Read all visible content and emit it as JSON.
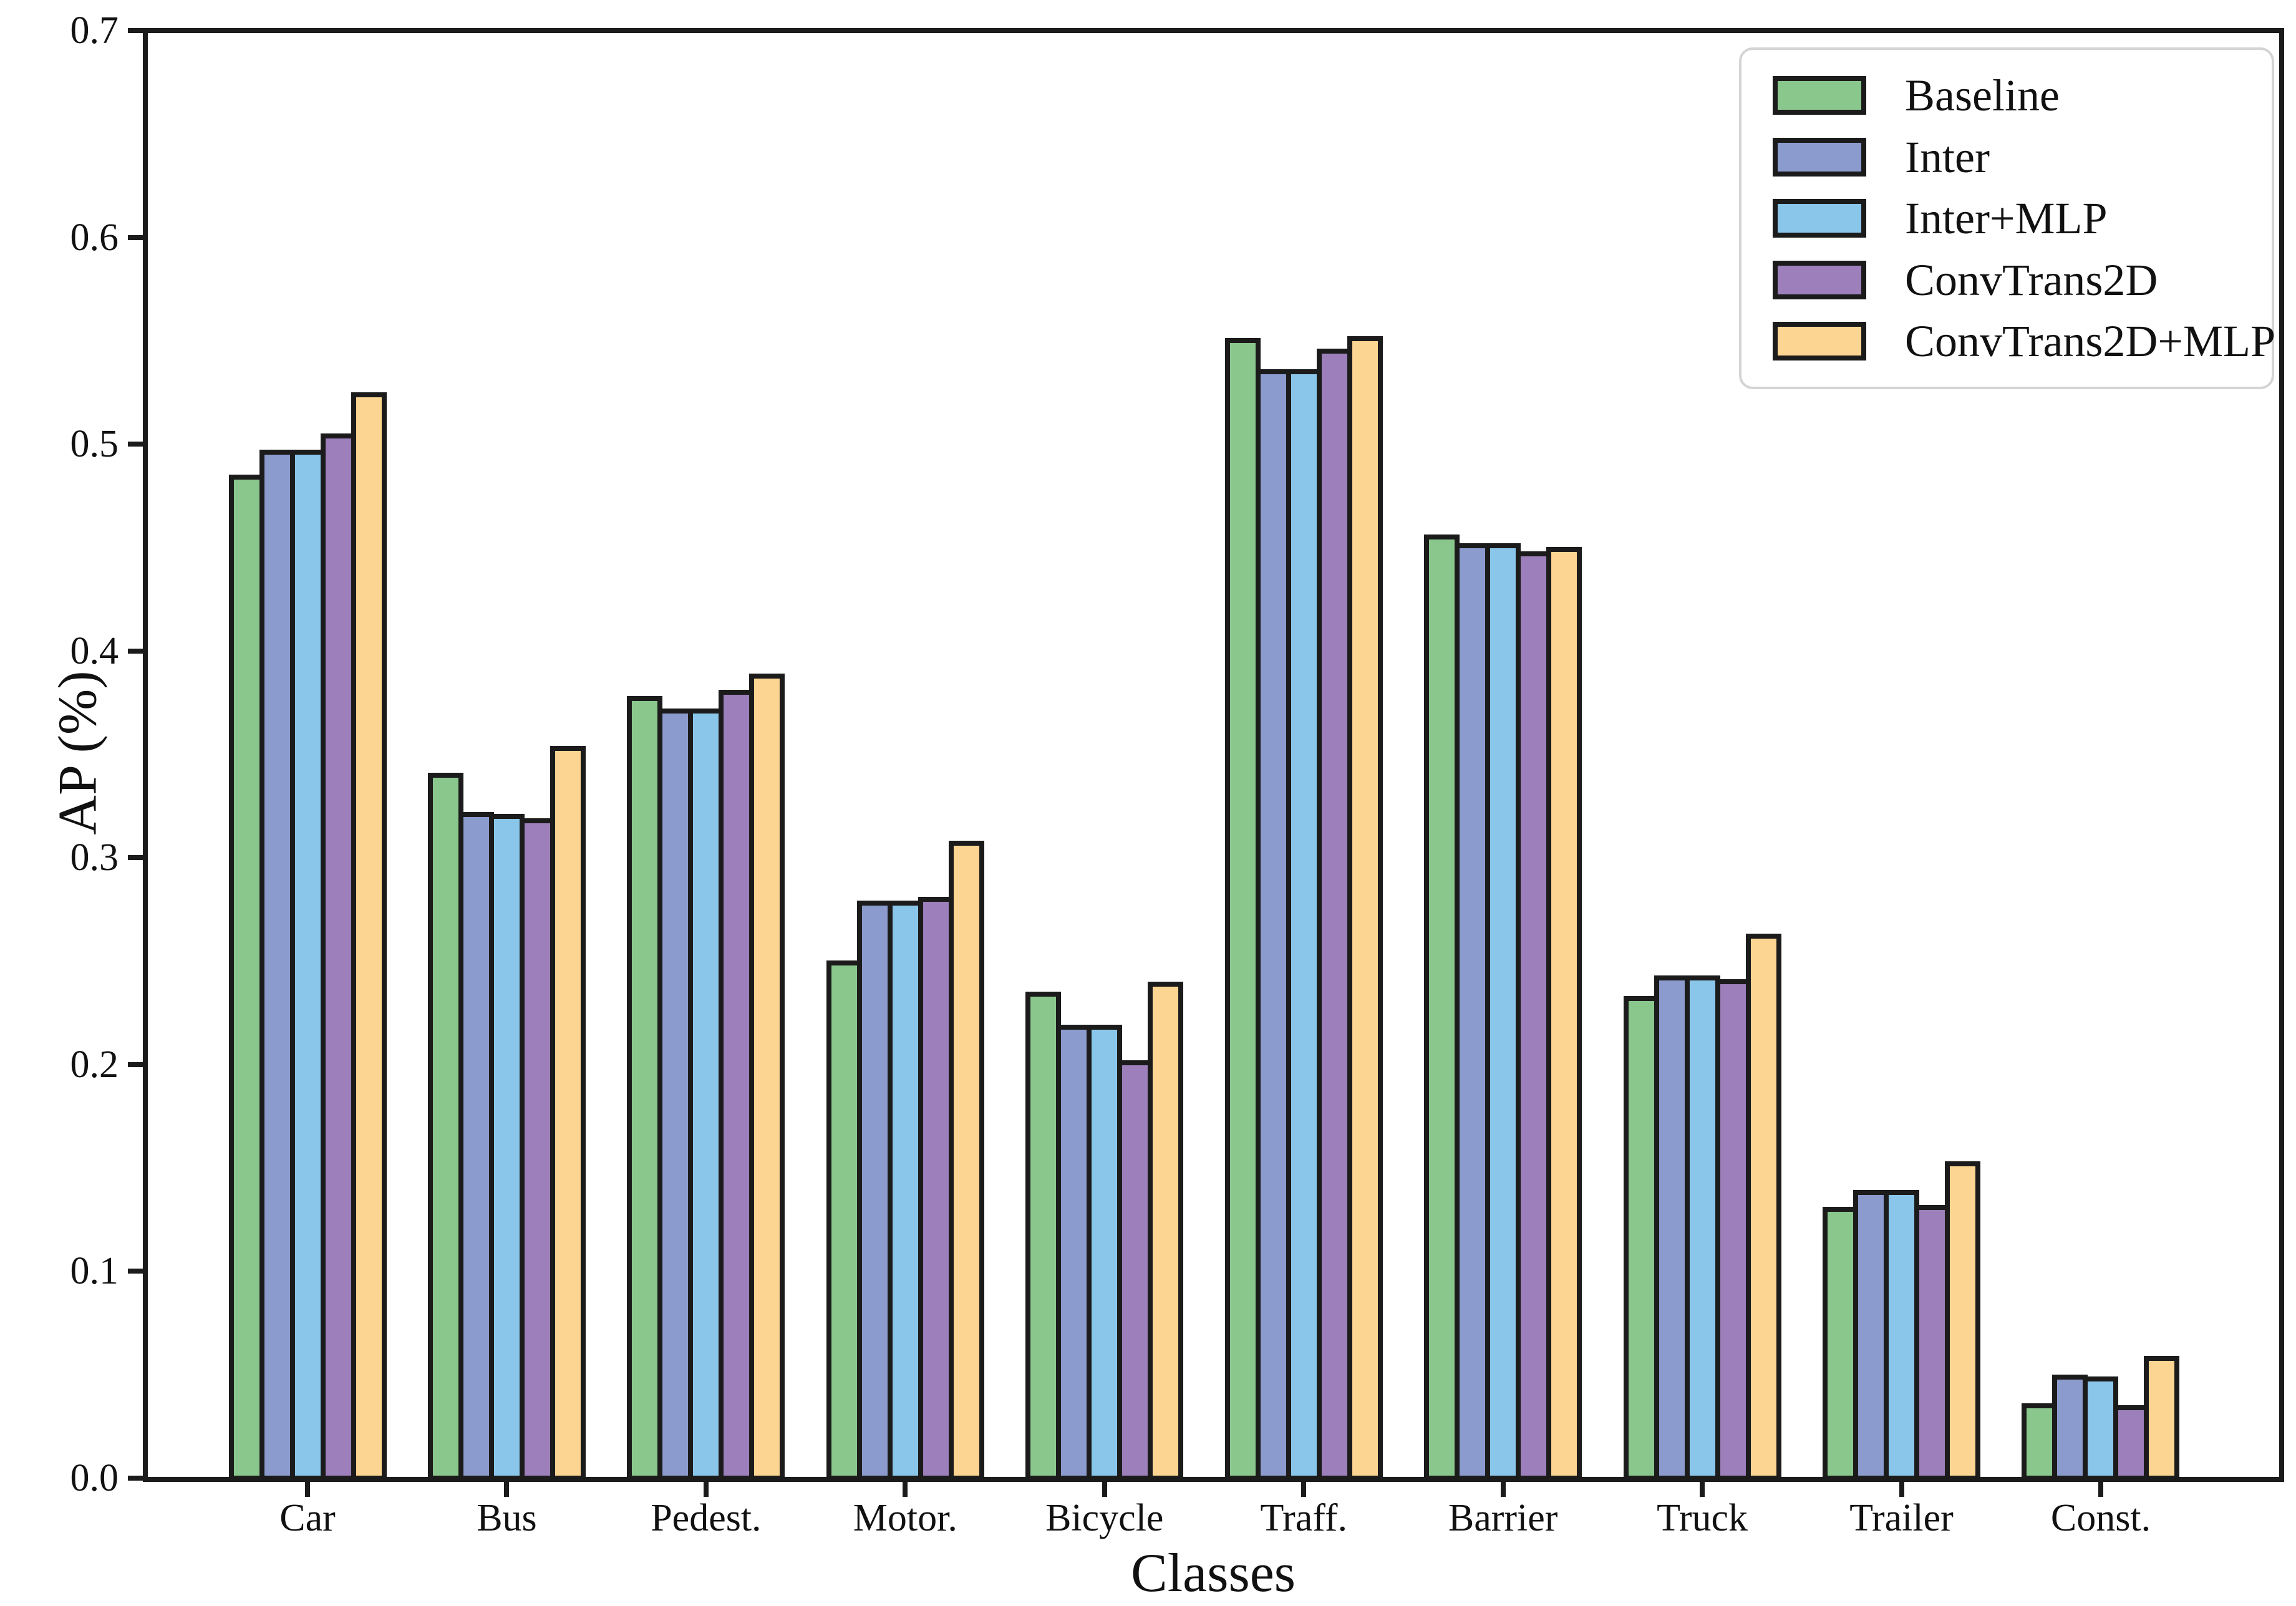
{
  "chart_data": {
    "type": "bar",
    "title": "",
    "xlabel": "Classes",
    "ylabel": "AP (%)",
    "ylim": [
      0.0,
      0.7
    ],
    "ytick_labels": [
      "0.0",
      "0.1",
      "0.2",
      "0.3",
      "0.4",
      "0.5",
      "0.6",
      "0.7"
    ],
    "grid": false,
    "legend_position": "upper right",
    "categories": [
      "Car",
      "Bus",
      "Pedest.",
      "Motor.",
      "Bicycle",
      "Traff.",
      "Barrier",
      "Truck",
      "Trailer",
      "Const."
    ],
    "series": [
      {
        "name": "Baseline",
        "color": "#8AC78D",
        "values": [
          0.484,
          0.34,
          0.377,
          0.249,
          0.234,
          0.55,
          0.455,
          0.232,
          0.13,
          0.035
        ]
      },
      {
        "name": "Inter",
        "color": "#8C9BCE",
        "values": [
          0.496,
          0.321,
          0.371,
          0.278,
          0.218,
          0.535,
          0.451,
          0.242,
          0.138,
          0.049
        ]
      },
      {
        "name": "Inter+MLP",
        "color": "#8AC6EA",
        "values": [
          0.496,
          0.32,
          0.371,
          0.278,
          0.218,
          0.535,
          0.451,
          0.242,
          0.138,
          0.048
        ]
      },
      {
        "name": "ConvTrans2D",
        "color": "#9C7FBB",
        "values": [
          0.504,
          0.318,
          0.38,
          0.28,
          0.201,
          0.545,
          0.447,
          0.24,
          0.131,
          0.034
        ]
      },
      {
        "name": "ConvTrans2D+MLP",
        "color": "#FDD592",
        "values": [
          0.524,
          0.353,
          0.388,
          0.307,
          0.239,
          0.551,
          0.449,
          0.262,
          0.152,
          0.058
        ]
      }
    ],
    "edge_color": "#1b1b1b",
    "axis_text_color": "#111111"
  }
}
